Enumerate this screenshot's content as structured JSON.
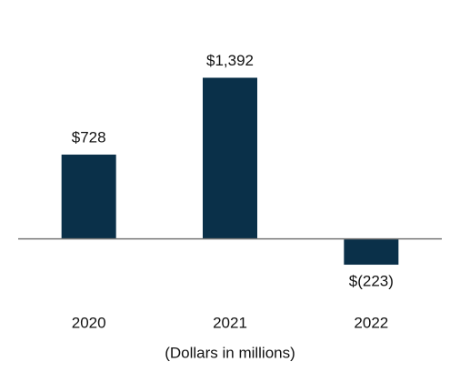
{
  "chart_data": {
    "type": "bar",
    "categories": [
      "2020",
      "2021",
      "2022"
    ],
    "values": [
      728,
      1392,
      -223
    ],
    "value_labels": [
      "$728",
      "$1,392",
      "$(223)"
    ],
    "color": "#0a3049",
    "x_label": "(Dollars in millions)",
    "ylim": [
      -600,
      1600
    ]
  }
}
